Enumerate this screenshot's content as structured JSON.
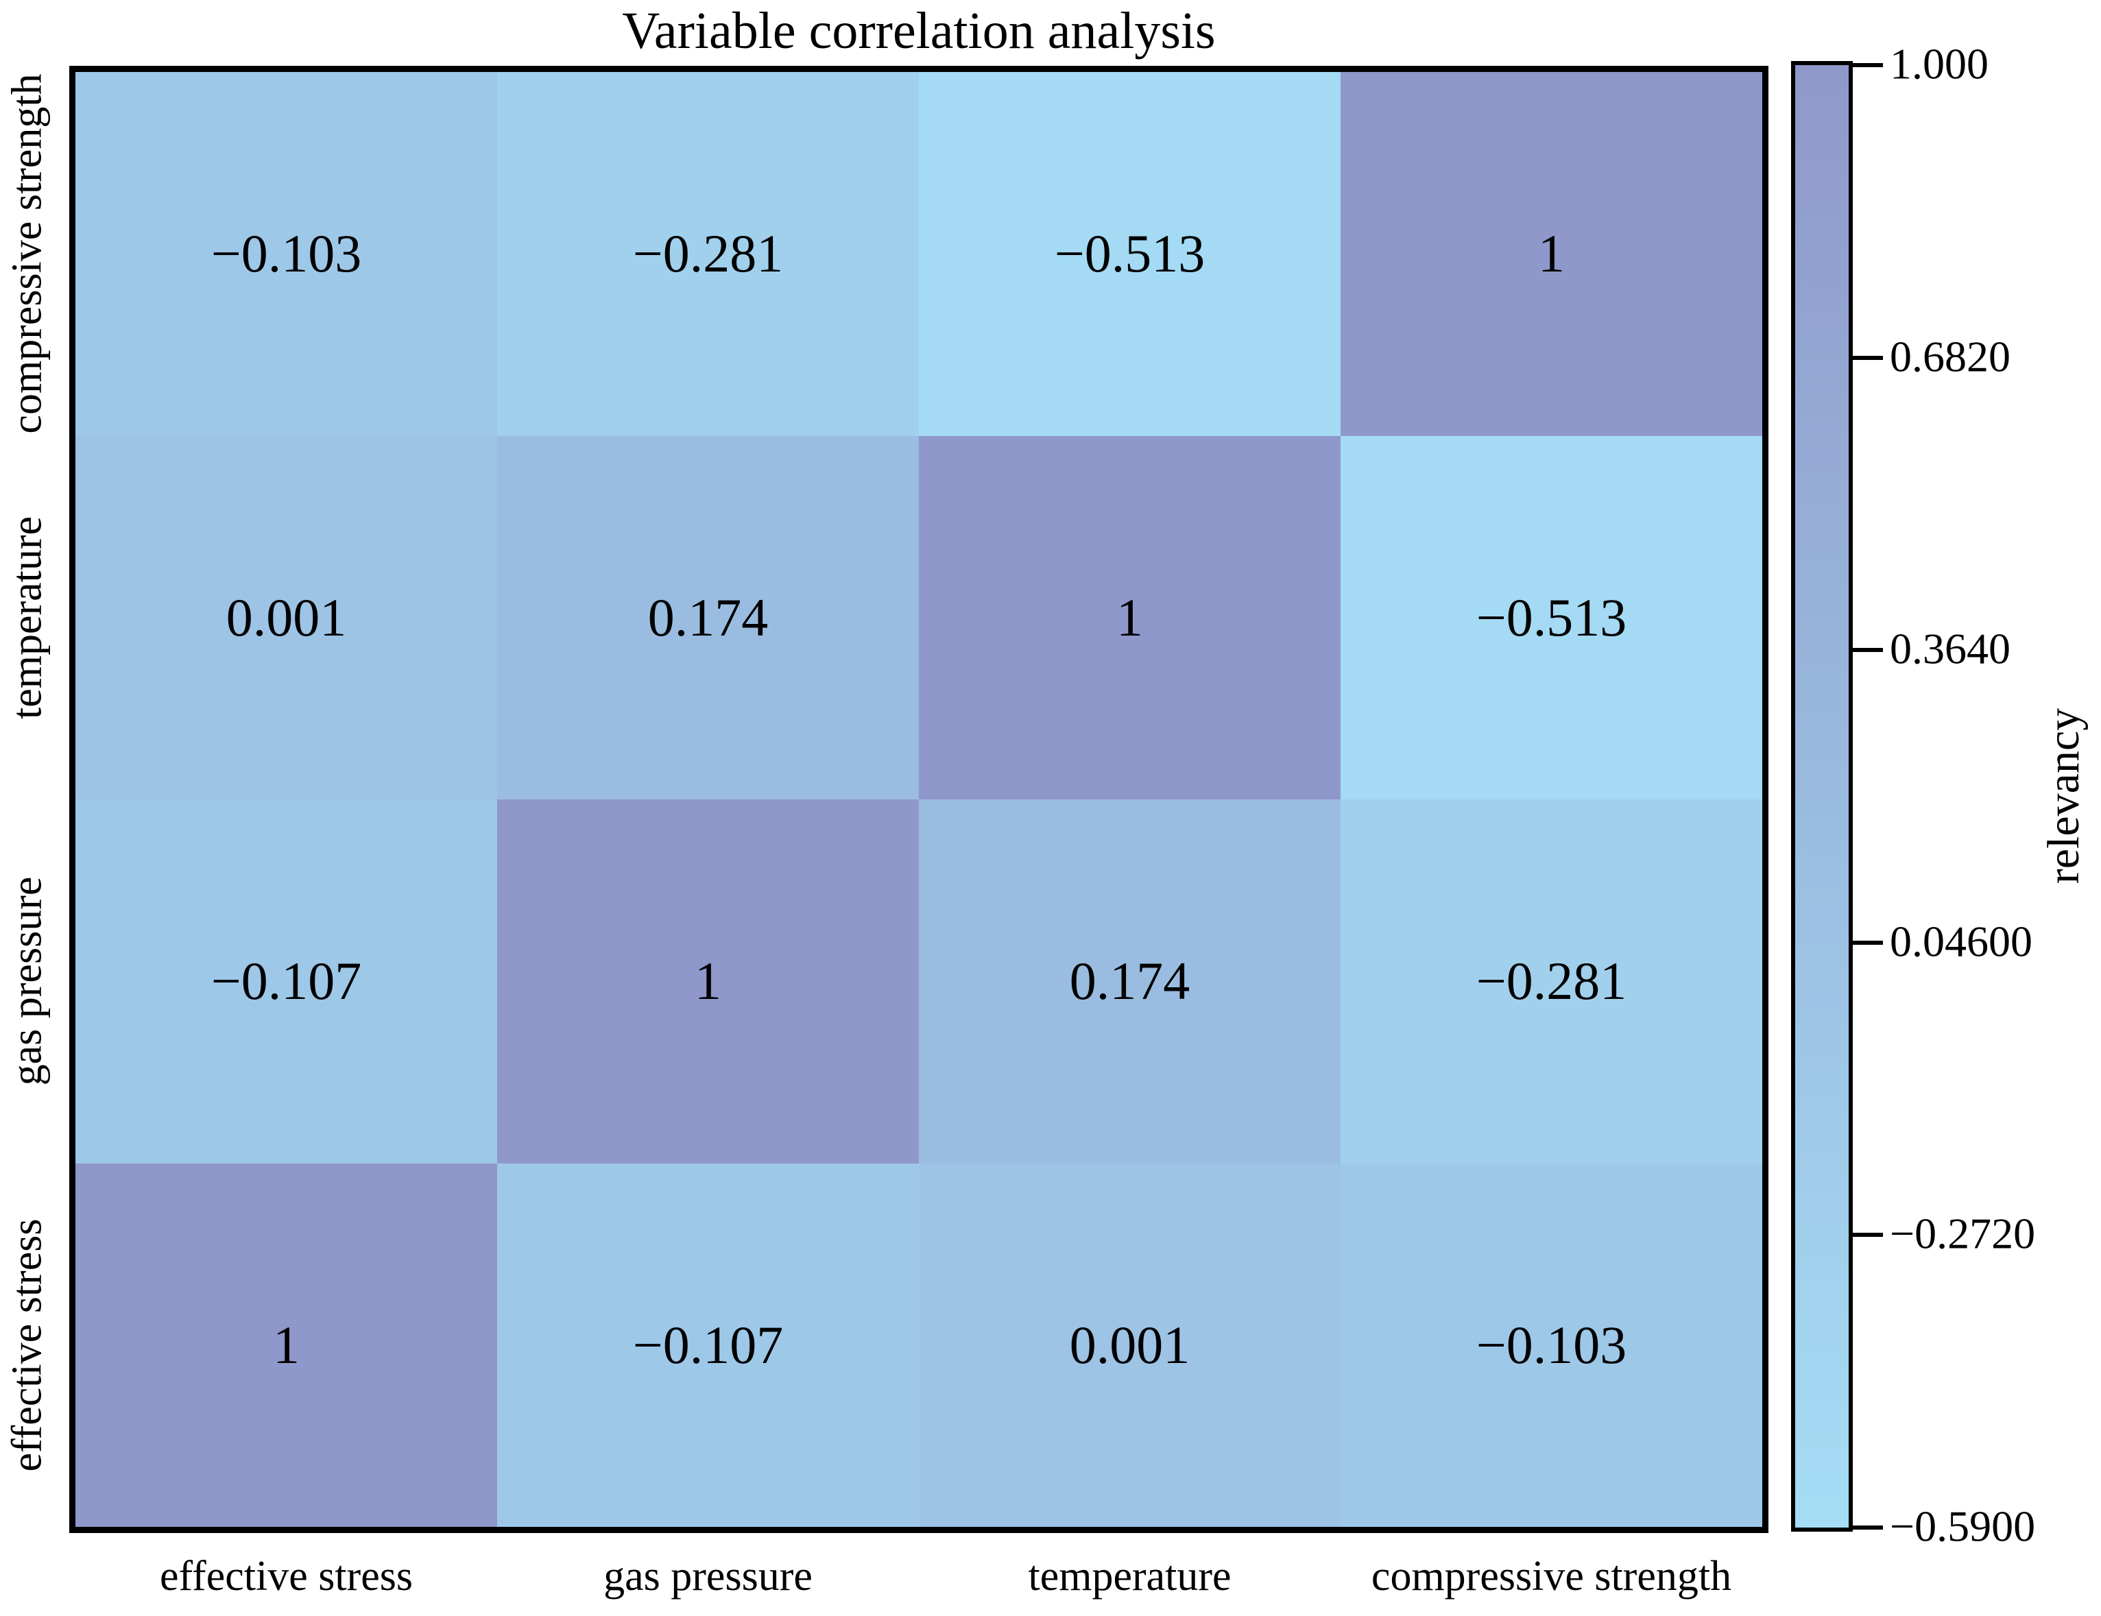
{
  "figure": {
    "title": "Variable correlation analysis"
  },
  "chart_data": {
    "type": "heatmap",
    "title": "Variable correlation analysis",
    "x_categories": [
      "effective stress",
      "gas pressure",
      "temperature",
      "compressive strength"
    ],
    "y_categories_top_to_bottom": [
      "compressive strength",
      "temperature",
      "gas pressure",
      "effective stress"
    ],
    "rows_top_to_bottom": [
      {
        "y": "compressive strength",
        "values": [
          -0.103,
          -0.281,
          -0.513,
          1
        ],
        "labels": [
          "−0.103",
          "−0.281",
          "−0.513",
          "1"
        ]
      },
      {
        "y": "temperature",
        "values": [
          0.001,
          0.174,
          1,
          -0.513
        ],
        "labels": [
          "0.001",
          "0.174",
          "1",
          "−0.513"
        ]
      },
      {
        "y": "gas pressure",
        "values": [
          -0.107,
          1,
          0.174,
          -0.281
        ],
        "labels": [
          "−0.107",
          "1",
          "0.174",
          "−0.281"
        ]
      },
      {
        "y": "effective stress",
        "values": [
          1,
          -0.107,
          0.001,
          -0.103
        ],
        "labels": [
          "1",
          "−0.107",
          "0.001",
          "−0.103"
        ]
      }
    ],
    "colorbar": {
      "label": "relevancy",
      "tick_labels": [
        "1.000",
        "0.6820",
        "0.3640",
        "0.04600",
        "−0.2720",
        "−0.5900"
      ],
      "tick_values": [
        1.0,
        0.682,
        0.364,
        0.046,
        -0.272,
        -0.59
      ],
      "vmin": -0.59,
      "vmax": 1.0,
      "color_at_vmin": "#a5ddf5",
      "color_at_vmax": "#8f98ca"
    },
    "grid": false,
    "legend": false,
    "axis_text_color": "#000000",
    "border_color": "#000000"
  }
}
